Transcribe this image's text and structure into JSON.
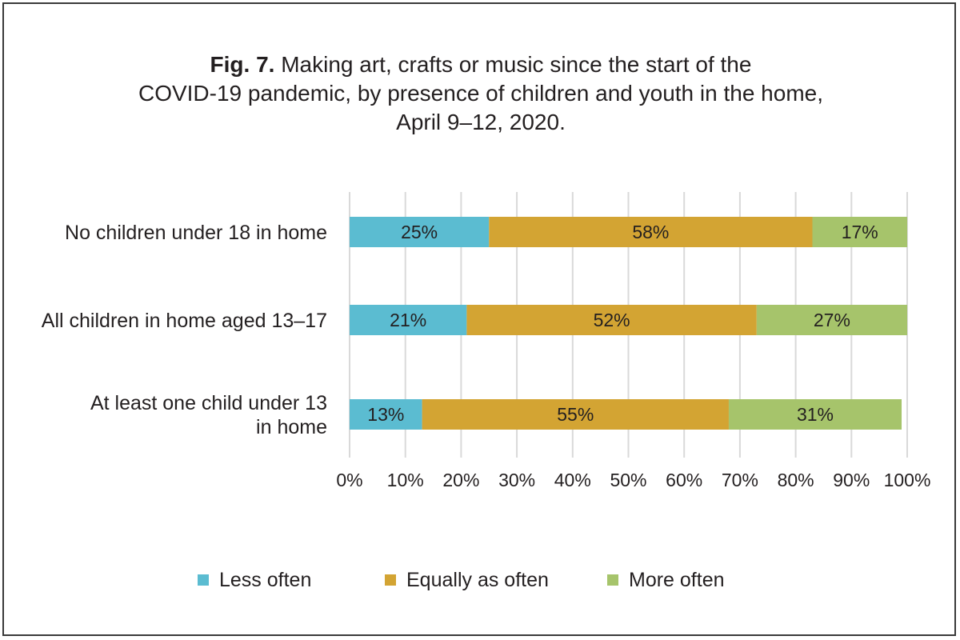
{
  "chart_data": {
    "type": "bar",
    "orientation": "horizontal",
    "stacked": true,
    "title_bold": "Fig. 7.",
    "title_lines": [
      " Making art, crafts or music since the start of the",
      "COVID-19 pandemic, by presence of children and youth in the home,",
      "April 9–12, 2020."
    ],
    "categories": [
      [
        "No children under 18 in home"
      ],
      [
        "All children in home aged 13–17"
      ],
      [
        "At least one child under 13",
        "in home"
      ]
    ],
    "series": [
      {
        "name": "Less often",
        "color": "#5bbcd1",
        "values": [
          25,
          21,
          13
        ],
        "labels": [
          "25%",
          "21%",
          "13%"
        ]
      },
      {
        "name": "Equally as often",
        "color": "#d3a433",
        "values": [
          58,
          52,
          55
        ],
        "labels": [
          "58%",
          "52%",
          "55%"
        ]
      },
      {
        "name": "More often",
        "color": "#a6c46b",
        "values": [
          17,
          27,
          31
        ],
        "labels": [
          "17%",
          "27%",
          "31%"
        ]
      }
    ],
    "xlim": [
      0,
      100
    ],
    "xticks": [
      "0%",
      "10%",
      "20%",
      "30%",
      "40%",
      "50%",
      "60%",
      "70%",
      "80%",
      "90%",
      "100%"
    ],
    "grid": "vertical",
    "gridline_color": "#d9d9d9",
    "legend_position": "bottom"
  }
}
